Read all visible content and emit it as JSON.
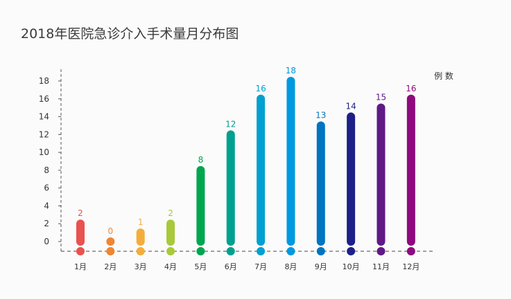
{
  "chart_data": {
    "type": "bar",
    "title": "2018年医院急诊介入手术量月分布图",
    "ylabel": "例 数",
    "xlabel": "",
    "categories": [
      "1月",
      "2月",
      "3月",
      "4月",
      "5月",
      "6月",
      "7月",
      "8月",
      "9月",
      "10月",
      "11月",
      "12月"
    ],
    "values": [
      2,
      0,
      1,
      2,
      8,
      12,
      16,
      18,
      13,
      14,
      15,
      16
    ],
    "colors": [
      "#e8524f",
      "#ee8634",
      "#f4ad3a",
      "#a8c93a",
      "#00a64e",
      "#00a08f",
      "#00a0d0",
      "#0098df",
      "#0074c0",
      "#1d2087",
      "#601986",
      "#8e0a7e"
    ],
    "ylim": [
      0,
      18
    ],
    "yticks": [
      0,
      2,
      4,
      6,
      8,
      10,
      12,
      14,
      16,
      18
    ],
    "grid": false
  }
}
